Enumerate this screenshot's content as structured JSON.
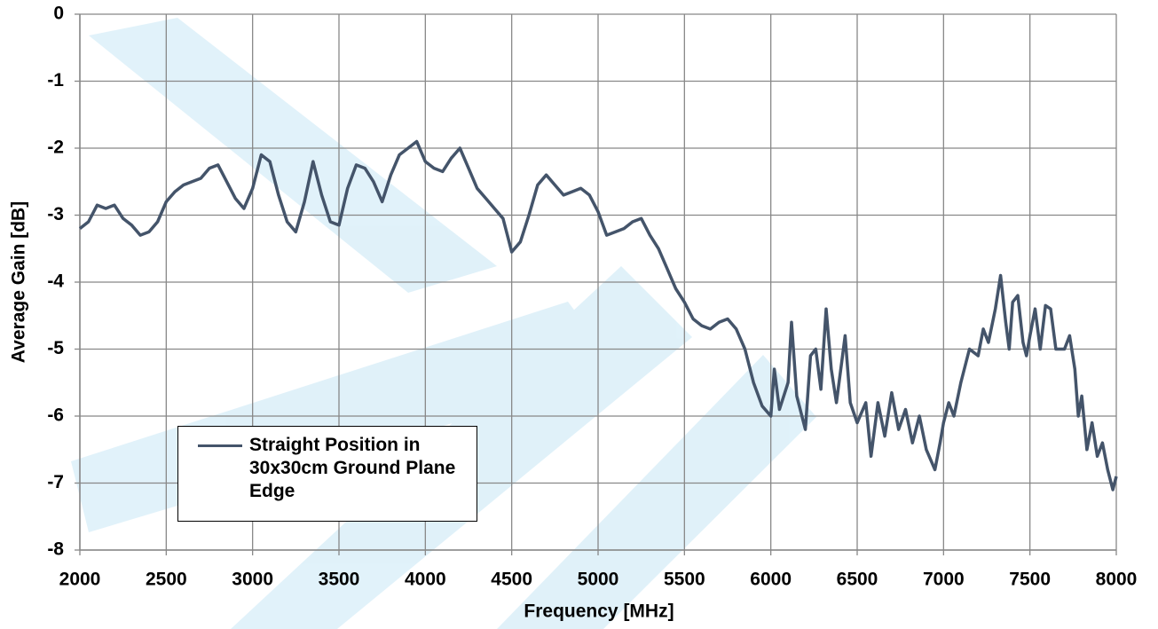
{
  "chart_data": {
    "type": "line",
    "x_label": "Frequency [MHz]",
    "y_label": "Average Gain [dB]",
    "xlim": [
      2000,
      8000
    ],
    "xticks": [
      2000,
      2500,
      3000,
      3500,
      4000,
      4500,
      5000,
      5500,
      6000,
      6500,
      7000,
      7500,
      8000
    ],
    "ylim": [
      -8,
      0
    ],
    "yticks": [
      -8,
      -7,
      -6,
      -5,
      -4,
      -3,
      -2,
      -1,
      0
    ],
    "grid": true,
    "legend": "lower-left",
    "x": [
      2000,
      2050,
      2100,
      2150,
      2200,
      2250,
      2300,
      2350,
      2400,
      2450,
      2500,
      2550,
      2600,
      2650,
      2700,
      2750,
      2800,
      2850,
      2900,
      2950,
      3000,
      3050,
      3100,
      3150,
      3200,
      3250,
      3300,
      3350,
      3400,
      3450,
      3500,
      3550,
      3600,
      3650,
      3700,
      3750,
      3800,
      3850,
      3900,
      3950,
      4000,
      4050,
      4100,
      4150,
      4200,
      4250,
      4300,
      4350,
      4400,
      4450,
      4500,
      4550,
      4600,
      4650,
      4700,
      4750,
      4800,
      4850,
      4900,
      4950,
      5000,
      5050,
      5100,
      5150,
      5200,
      5250,
      5300,
      5350,
      5400,
      5450,
      5500,
      5550,
      5600,
      5650,
      5700,
      5750,
      5800,
      5850,
      5900,
      5950,
      6000,
      6020,
      6050,
      6100,
      6120,
      6150,
      6200,
      6230,
      6260,
      6290,
      6320,
      6350,
      6380,
      6410,
      6430,
      6460,
      6500,
      6550,
      6580,
      6620,
      6660,
      6700,
      6740,
      6780,
      6820,
      6860,
      6900,
      6950,
      6980,
      7000,
      7030,
      7060,
      7100,
      7150,
      7200,
      7230,
      7260,
      7300,
      7330,
      7360,
      7380,
      7400,
      7430,
      7460,
      7480,
      7500,
      7530,
      7560,
      7590,
      7620,
      7650,
      7700,
      7730,
      7760,
      7780,
      7800,
      7830,
      7860,
      7890,
      7920,
      7950,
      7980,
      8000
    ],
    "series": [
      {
        "name": "Straight Position in 30x30cm Ground Plane Edge",
        "color": "#44546a",
        "values": [
          -3.2,
          -3.1,
          -2.85,
          -2.9,
          -2.85,
          -3.05,
          -3.15,
          -3.3,
          -3.25,
          -3.1,
          -2.8,
          -2.65,
          -2.55,
          -2.5,
          -2.45,
          -2.3,
          -2.25,
          -2.5,
          -2.75,
          -2.9,
          -2.6,
          -2.1,
          -2.2,
          -2.7,
          -3.1,
          -3.25,
          -2.8,
          -2.2,
          -2.7,
          -3.1,
          -3.15,
          -2.6,
          -2.25,
          -2.3,
          -2.5,
          -2.8,
          -2.4,
          -2.1,
          -2.0,
          -1.9,
          -2.2,
          -2.3,
          -2.35,
          -2.15,
          -2.0,
          -2.3,
          -2.6,
          -2.75,
          -2.9,
          -3.05,
          -3.55,
          -3.4,
          -3.0,
          -2.55,
          -2.4,
          -2.55,
          -2.7,
          -2.65,
          -2.6,
          -2.7,
          -2.95,
          -3.3,
          -3.25,
          -3.2,
          -3.1,
          -3.05,
          -3.3,
          -3.5,
          -3.8,
          -4.1,
          -4.3,
          -4.55,
          -4.65,
          -4.7,
          -4.6,
          -4.55,
          -4.7,
          -5.0,
          -5.5,
          -5.85,
          -6.0,
          -5.3,
          -5.9,
          -5.5,
          -4.6,
          -5.7,
          -6.2,
          -5.1,
          -5.0,
          -5.6,
          -4.4,
          -5.3,
          -5.8,
          -5.2,
          -4.8,
          -5.8,
          -6.1,
          -5.8,
          -6.6,
          -5.8,
          -6.3,
          -5.65,
          -6.2,
          -5.9,
          -6.4,
          -6.0,
          -6.5,
          -6.8,
          -6.4,
          -6.1,
          -5.8,
          -6.0,
          -5.5,
          -5.0,
          -5.1,
          -4.7,
          -4.9,
          -4.4,
          -3.9,
          -4.6,
          -5.0,
          -4.3,
          -4.2,
          -4.9,
          -5.1,
          -4.8,
          -4.4,
          -5.0,
          -4.35,
          -4.4,
          -5.0,
          -5.0,
          -4.8,
          -5.3,
          -6.0,
          -5.7,
          -6.5,
          -6.1,
          -6.6,
          -6.4,
          -6.8,
          -7.1,
          -6.9
        ]
      }
    ]
  }
}
